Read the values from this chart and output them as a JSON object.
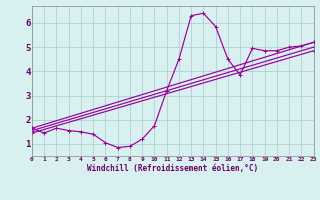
{
  "xlabel": "Windchill (Refroidissement éolien,°C)",
  "background_color": "#d8f0f0",
  "grid_color": "#b0d0d0",
  "line_color": "#990099",
  "text_color": "#660066",
  "xlim": [
    0,
    23
  ],
  "ylim": [
    0.5,
    6.7
  ],
  "yticks": [
    1,
    2,
    3,
    4,
    5,
    6
  ],
  "xticks": [
    0,
    1,
    2,
    3,
    4,
    5,
    6,
    7,
    8,
    9,
    10,
    11,
    12,
    13,
    14,
    15,
    16,
    17,
    18,
    19,
    20,
    21,
    22,
    23
  ],
  "main_x": [
    0,
    1,
    2,
    3,
    4,
    5,
    6,
    7,
    8,
    9,
    10,
    11,
    12,
    13,
    14,
    15,
    16,
    17,
    18,
    19,
    20,
    21,
    22,
    23
  ],
  "main_y": [
    1.65,
    1.45,
    1.65,
    1.55,
    1.5,
    1.4,
    1.05,
    0.85,
    0.9,
    1.2,
    1.75,
    3.2,
    4.5,
    6.3,
    6.4,
    5.85,
    4.5,
    3.85,
    4.95,
    4.85,
    4.85,
    5.0,
    5.05,
    5.2
  ],
  "trend_lines": [
    {
      "x": [
        0,
        23
      ],
      "y": [
        1.65,
        5.2
      ]
    },
    {
      "x": [
        0,
        23
      ],
      "y": [
        1.55,
        5.0
      ]
    },
    {
      "x": [
        0,
        23
      ],
      "y": [
        1.45,
        4.85
      ]
    }
  ]
}
